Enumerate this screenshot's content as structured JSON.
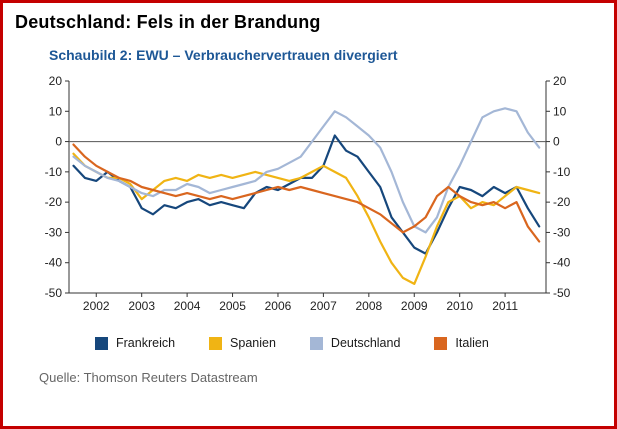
{
  "page": {
    "title": "Deutschland: Fels in der Brandung",
    "source": "Quelle: Thomson Reuters Datastream"
  },
  "chart": {
    "title": "Schaubild 2: EWU – Verbrauchervertrauen divergiert"
  },
  "colors": {
    "border": "#c40000",
    "chart_title": "#1d5796",
    "axis": "#333333",
    "zero_line": "#555555"
  },
  "chart_data": {
    "type": "line",
    "title": "Schaubild 2: EWU – Verbrauchervertrauen divergiert",
    "xlabel": "",
    "ylabel": "",
    "xlim": [
      2001.4,
      2011.9
    ],
    "ylim": [
      -50,
      20
    ],
    "yticks": [
      20,
      10,
      0,
      -10,
      -20,
      -30,
      -40,
      -50
    ],
    "xticks": [
      2002,
      2003,
      2004,
      2005,
      2006,
      2007,
      2008,
      2009,
      2010,
      2011
    ],
    "grid": false,
    "zero_line": true,
    "legend_position": "bottom",
    "x": [
      2001.5,
      2001.75,
      2002.0,
      2002.25,
      2002.5,
      2002.75,
      2003.0,
      2003.25,
      2003.5,
      2003.75,
      2004.0,
      2004.25,
      2004.5,
      2004.75,
      2005.0,
      2005.25,
      2005.5,
      2005.75,
      2006.0,
      2006.25,
      2006.5,
      2006.75,
      2007.0,
      2007.25,
      2007.5,
      2007.75,
      2008.0,
      2008.25,
      2008.5,
      2008.75,
      2009.0,
      2009.25,
      2009.5,
      2009.75,
      2010.0,
      2010.25,
      2010.5,
      2010.75,
      2011.0,
      2011.25,
      2011.5,
      2011.75
    ],
    "series": [
      {
        "name": "Frankreich",
        "color": "#16477c",
        "values": [
          -8,
          -12,
          -13,
          -10,
          -13,
          -15,
          -22,
          -24,
          -21,
          -22,
          -20,
          -19,
          -21,
          -20,
          -21,
          -22,
          -17,
          -15,
          -16,
          -14,
          -12,
          -12,
          -8,
          2,
          -3,
          -5,
          -10,
          -15,
          -25,
          -30,
          -35,
          -37,
          -30,
          -22,
          -15,
          -16,
          -18,
          -15,
          -17,
          -15,
          -22,
          -28
        ]
      },
      {
        "name": "Spanien",
        "color": "#f0b414",
        "values": [
          -4,
          -8,
          -10,
          -12,
          -12,
          -14,
          -19,
          -16,
          -13,
          -12,
          -13,
          -11,
          -12,
          -11,
          -12,
          -11,
          -10,
          -11,
          -12,
          -13,
          -12,
          -10,
          -8,
          -10,
          -12,
          -18,
          -25,
          -33,
          -40,
          -45,
          -47,
          -38,
          -28,
          -20,
          -18,
          -22,
          -20,
          -21,
          -18,
          -15,
          -16,
          -17
        ]
      },
      {
        "name": "Deutschland",
        "color": "#a4b7d6",
        "values": [
          -5,
          -8,
          -10,
          -12,
          -13,
          -15,
          -17,
          -18,
          -16,
          -16,
          -14,
          -15,
          -17,
          -16,
          -15,
          -14,
          -13,
          -10,
          -9,
          -7,
          -5,
          0,
          5,
          10,
          8,
          5,
          2,
          -2,
          -10,
          -20,
          -28,
          -30,
          -25,
          -15,
          -8,
          0,
          8,
          10,
          11,
          10,
          3,
          -2
        ]
      },
      {
        "name": "Italien",
        "color": "#d9661f",
        "values": [
          -1,
          -5,
          -8,
          -10,
          -12,
          -13,
          -15,
          -16,
          -17,
          -18,
          -17,
          -18,
          -19,
          -18,
          -19,
          -18,
          -17,
          -16,
          -15,
          -16,
          -15,
          -16,
          -17,
          -18,
          -19,
          -20,
          -22,
          -24,
          -27,
          -30,
          -28,
          -25,
          -18,
          -15,
          -18,
          -20,
          -21,
          -20,
          -22,
          -20,
          -28,
          -33
        ]
      }
    ]
  }
}
